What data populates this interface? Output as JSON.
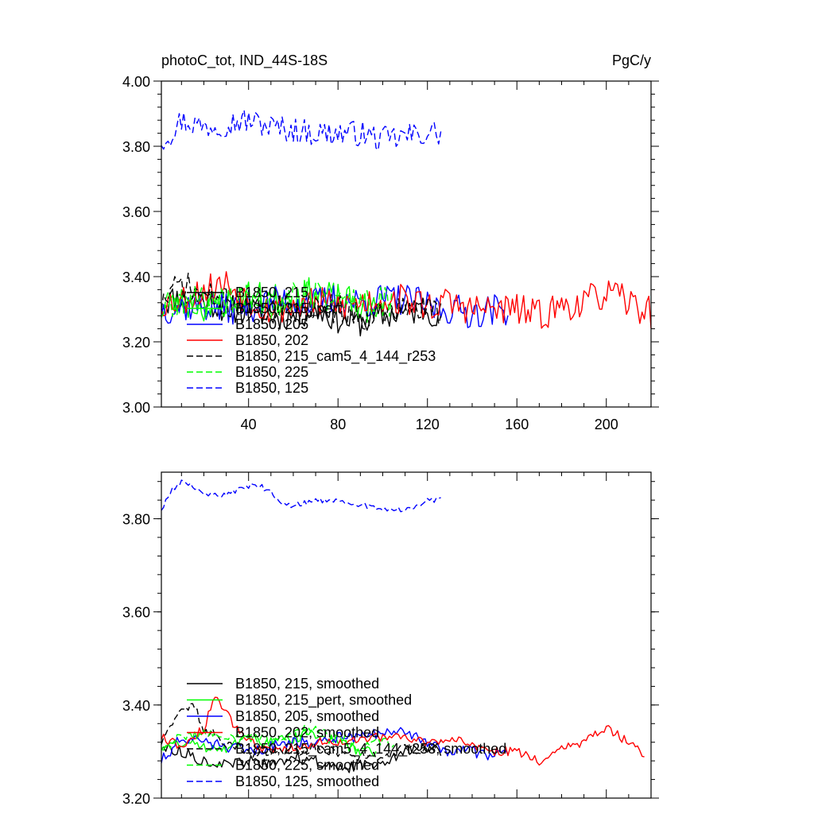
{
  "chart_data": [
    {
      "type": "line",
      "title": "photoC_tot, IND_44S-18S",
      "units": "PgC/y",
      "xlabel": "",
      "ylabel": "",
      "xlim": [
        1,
        220
      ],
      "ylim": [
        3.0,
        4.0
      ],
      "xticks": [
        40,
        80,
        120,
        160,
        200
      ],
      "xtick_labels": [
        "40",
        "80",
        "120",
        "160",
        "200"
      ],
      "yticks": [
        3.0,
        3.2,
        3.4,
        3.6,
        3.8,
        4.0
      ],
      "ytick_labels": [
        "3.00",
        "3.20",
        "3.40",
        "3.60",
        "3.80",
        "4.00"
      ],
      "legend_position": "lower-left",
      "series": [
        {
          "name": "B1850, 215",
          "color": "#000000",
          "dash": "solid",
          "knots": [
            [
              1,
              3.32
            ],
            [
              10,
              3.34
            ],
            [
              20,
              3.33
            ],
            [
              30,
              3.3
            ],
            [
              40,
              3.3
            ],
            [
              50,
              3.28
            ],
            [
              60,
              3.28
            ],
            [
              70,
              3.3
            ],
            [
              80,
              3.27
            ],
            [
              90,
              3.26
            ],
            [
              100,
              3.28
            ],
            [
              110,
              3.29
            ],
            [
              120,
              3.3
            ],
            [
              126,
              3.28
            ]
          ],
          "x_range": [
            1,
            126
          ],
          "noise": 0.045,
          "seed": 11
        },
        {
          "name": "B1850, 215_pert",
          "color": "#00ff00",
          "dash": "solid",
          "knots": [
            [
              1,
              3.3
            ],
            [
              10,
              3.32
            ],
            [
              20,
              3.31
            ],
            [
              30,
              3.32
            ],
            [
              40,
              3.34
            ],
            [
              50,
              3.33
            ],
            [
              60,
              3.34
            ],
            [
              70,
              3.35
            ],
            [
              80,
              3.33
            ],
            [
              90,
              3.31
            ],
            [
              97,
              3.3
            ]
          ],
          "x_range": [
            1,
            97
          ],
          "noise": 0.05,
          "seed": 23
        },
        {
          "name": "B1850, 205",
          "color": "#0000ff",
          "dash": "solid",
          "knots": [
            [
              1,
              3.3
            ],
            [
              10,
              3.31
            ],
            [
              20,
              3.31
            ],
            [
              30,
              3.3
            ],
            [
              40,
              3.31
            ],
            [
              50,
              3.32
            ],
            [
              60,
              3.33
            ],
            [
              70,
              3.32
            ],
            [
              80,
              3.33
            ],
            [
              90,
              3.32
            ],
            [
              100,
              3.33
            ],
            [
              110,
              3.33
            ],
            [
              120,
              3.31
            ],
            [
              130,
              3.3
            ],
            [
              140,
              3.29
            ],
            [
              150,
              3.3
            ],
            [
              156,
              3.3
            ]
          ],
          "x_range": [
            1,
            156
          ],
          "noise": 0.05,
          "seed": 37
        },
        {
          "name": "B1850, 202",
          "color": "#ff0000",
          "dash": "solid",
          "knots": [
            [
              1,
              3.32
            ],
            [
              10,
              3.33
            ],
            [
              20,
              3.36
            ],
            [
              30,
              3.38
            ],
            [
              40,
              3.33
            ],
            [
              50,
              3.3
            ],
            [
              60,
              3.31
            ],
            [
              70,
              3.32
            ],
            [
              80,
              3.31
            ],
            [
              90,
              3.32
            ],
            [
              100,
              3.33
            ],
            [
              110,
              3.33
            ],
            [
              120,
              3.31
            ],
            [
              130,
              3.32
            ],
            [
              140,
              3.3
            ],
            [
              150,
              3.3
            ],
            [
              160,
              3.3
            ],
            [
              170,
              3.28
            ],
            [
              180,
              3.31
            ],
            [
              190,
              3.32
            ],
            [
              200,
              3.35
            ],
            [
              210,
              3.32
            ],
            [
              220,
              3.29
            ]
          ],
          "x_range": [
            1,
            220
          ],
          "noise": 0.05,
          "seed": 53
        },
        {
          "name": "B1850, 215_cam5_4_144_r253",
          "color": "#000000",
          "dash": "dashed",
          "knots": [
            [
              1,
              3.32
            ],
            [
              10,
              3.38
            ],
            [
              20,
              3.34
            ],
            [
              30,
              3.32
            ],
            [
              40,
              3.31
            ],
            [
              50,
              3.3
            ],
            [
              60,
              3.3
            ],
            [
              70,
              3.31
            ],
            [
              80,
              3.3
            ],
            [
              90,
              3.28
            ],
            [
              100,
              3.29
            ],
            [
              110,
              3.3
            ],
            [
              120,
              3.3
            ],
            [
              126,
              3.3
            ]
          ],
          "x_range": [
            1,
            126
          ],
          "noise": 0.045,
          "seed": 71
        },
        {
          "name": "B1850, 225",
          "color": "#00ff00",
          "dash": "dashed",
          "knots": [
            [
              1,
              3.3
            ],
            [
              10,
              3.32
            ],
            [
              20,
              3.32
            ],
            [
              30,
              3.33
            ],
            [
              40,
              3.33
            ],
            [
              50,
              3.32
            ],
            [
              60,
              3.34
            ],
            [
              70,
              3.35
            ],
            [
              80,
              3.33
            ],
            [
              90,
              3.32
            ],
            [
              100,
              3.32
            ],
            [
              105,
              3.31
            ]
          ],
          "x_range": [
            1,
            105
          ],
          "noise": 0.05,
          "seed": 89
        },
        {
          "name": "B1850, 125",
          "color": "#0000ff",
          "dash": "dashed",
          "knots": [
            [
              1,
              3.82
            ],
            [
              5,
              3.84
            ],
            [
              10,
              3.88
            ],
            [
              20,
              3.86
            ],
            [
              30,
              3.87
            ],
            [
              40,
              3.88
            ],
            [
              50,
              3.86
            ],
            [
              60,
              3.85
            ],
            [
              70,
              3.84
            ],
            [
              80,
              3.84
            ],
            [
              90,
              3.84
            ],
            [
              100,
              3.82
            ],
            [
              110,
              3.83
            ],
            [
              120,
              3.84
            ],
            [
              126,
              3.84
            ]
          ],
          "x_range": [
            1,
            126
          ],
          "noise": 0.04,
          "seed": 97
        }
      ],
      "legend": [
        "B1850, 215",
        "B1850, 215_pert",
        "B1850, 205",
        "B1850, 202",
        "B1850, 215_cam5_4_144_r253",
        "B1850, 225",
        "B1850, 125"
      ]
    },
    {
      "type": "line",
      "title": "",
      "xlim": [
        1,
        220
      ],
      "ylim": [
        3.2,
        3.9
      ],
      "xticks": [
        40,
        80,
        120,
        160,
        200
      ],
      "yticks": [
        3.2,
        3.4,
        3.6,
        3.8
      ],
      "ytick_labels": [
        "3.20",
        "3.40",
        "3.60",
        "3.80"
      ],
      "legend_position": "lower-left",
      "series": [
        {
          "name": "B1850, 215, smoothed",
          "color": "#000000",
          "dash": "solid",
          "knots": [
            [
              1,
              3.31
            ],
            [
              10,
              3.3
            ],
            [
              20,
              3.28
            ],
            [
              30,
              3.27
            ],
            [
              40,
              3.28
            ],
            [
              50,
              3.27
            ],
            [
              60,
              3.29
            ],
            [
              70,
              3.28
            ],
            [
              80,
              3.26
            ],
            [
              90,
              3.27
            ],
            [
              100,
              3.28
            ],
            [
              110,
              3.3
            ],
            [
              120,
              3.31
            ],
            [
              126,
              3.3
            ]
          ],
          "x_range": [
            1,
            126
          ],
          "noise": 0.012,
          "seed": 113
        },
        {
          "name": "B1850, 215_pert, smoothed",
          "color": "#00ff00",
          "dash": "solid",
          "knots": [
            [
              1,
              3.31
            ],
            [
              10,
              3.32
            ],
            [
              20,
              3.31
            ],
            [
              30,
              3.31
            ],
            [
              40,
              3.33
            ],
            [
              50,
              3.32
            ],
            [
              60,
              3.33
            ],
            [
              70,
              3.34
            ],
            [
              80,
              3.32
            ],
            [
              90,
              3.3
            ],
            [
              97,
              3.3
            ]
          ],
          "x_range": [
            1,
            97
          ],
          "noise": 0.012,
          "seed": 131
        },
        {
          "name": "B1850, 205, smoothed",
          "color": "#0000ff",
          "dash": "solid",
          "knots": [
            [
              1,
              3.28
            ],
            [
              10,
              3.33
            ],
            [
              20,
              3.32
            ],
            [
              30,
              3.31
            ],
            [
              40,
              3.3
            ],
            [
              50,
              3.31
            ],
            [
              60,
              3.32
            ],
            [
              70,
              3.32
            ],
            [
              80,
              3.33
            ],
            [
              90,
              3.33
            ],
            [
              100,
              3.34
            ],
            [
              110,
              3.34
            ],
            [
              120,
              3.32
            ],
            [
              130,
              3.3
            ],
            [
              140,
              3.3
            ],
            [
              150,
              3.29
            ],
            [
              156,
              3.3
            ]
          ],
          "x_range": [
            1,
            156
          ],
          "noise": 0.012,
          "seed": 151
        },
        {
          "name": "B1850, 202, smoothed",
          "color": "#ff0000",
          "dash": "solid",
          "knots": [
            [
              1,
              3.33
            ],
            [
              10,
              3.31
            ],
            [
              20,
              3.35
            ],
            [
              25,
              3.42
            ],
            [
              30,
              3.38
            ],
            [
              40,
              3.32
            ],
            [
              50,
              3.3
            ],
            [
              60,
              3.31
            ],
            [
              70,
              3.32
            ],
            [
              80,
              3.32
            ],
            [
              90,
              3.33
            ],
            [
              100,
              3.33
            ],
            [
              110,
              3.33
            ],
            [
              120,
              3.32
            ],
            [
              130,
              3.33
            ],
            [
              140,
              3.31
            ],
            [
              150,
              3.3
            ],
            [
              160,
              3.3
            ],
            [
              170,
              3.28
            ],
            [
              180,
              3.31
            ],
            [
              190,
              3.32
            ],
            [
              200,
              3.35
            ],
            [
              210,
              3.32
            ],
            [
              217,
              3.29
            ]
          ],
          "x_range": [
            1,
            217
          ],
          "noise": 0.01,
          "seed": 173
        },
        {
          "name": "B1850, 215_cam5_4_144_r253, smoothed",
          "color": "#000000",
          "dash": "dashed",
          "knots": [
            [
              1,
              3.32
            ],
            [
              10,
              3.39
            ],
            [
              15,
              3.4
            ],
            [
              20,
              3.35
            ],
            [
              30,
              3.32
            ],
            [
              40,
              3.3
            ],
            [
              50,
              3.3
            ],
            [
              60,
              3.3
            ],
            [
              70,
              3.31
            ],
            [
              80,
              3.3
            ],
            [
              90,
              3.29
            ],
            [
              100,
              3.29
            ],
            [
              110,
              3.31
            ],
            [
              120,
              3.3
            ],
            [
              126,
              3.31
            ]
          ],
          "x_range": [
            1,
            126
          ],
          "noise": 0.012,
          "seed": 191
        },
        {
          "name": "B1850, 225, smoothed",
          "color": "#00ff00",
          "dash": "dashed",
          "knots": [
            [
              1,
              3.31
            ],
            [
              10,
              3.33
            ],
            [
              20,
              3.34
            ],
            [
              30,
              3.33
            ],
            [
              40,
              3.33
            ],
            [
              50,
              3.32
            ],
            [
              60,
              3.34
            ],
            [
              70,
              3.35
            ],
            [
              80,
              3.33
            ],
            [
              90,
              3.31
            ],
            [
              100,
              3.32
            ],
            [
              105,
              3.31
            ]
          ],
          "x_range": [
            1,
            105
          ],
          "noise": 0.012,
          "seed": 211
        },
        {
          "name": "B1850, 125, smoothed",
          "color": "#0000ff",
          "dash": "dashed",
          "knots": [
            [
              1,
              3.82
            ],
            [
              5,
              3.86
            ],
            [
              10,
              3.88
            ],
            [
              15,
              3.87
            ],
            [
              20,
              3.85
            ],
            [
              30,
              3.85
            ],
            [
              40,
              3.87
            ],
            [
              45,
              3.87
            ],
            [
              50,
              3.86
            ],
            [
              55,
              3.83
            ],
            [
              60,
              3.83
            ],
            [
              70,
              3.84
            ],
            [
              80,
              3.84
            ],
            [
              90,
              3.83
            ],
            [
              100,
              3.82
            ],
            [
              110,
              3.82
            ],
            [
              120,
              3.84
            ],
            [
              126,
              3.84
            ]
          ],
          "x_range": [
            1,
            126
          ],
          "noise": 0.006,
          "seed": 229
        }
      ],
      "legend": [
        "B1850, 215, smoothed",
        "B1850, 215_pert, smoothed",
        "B1850, 205, smoothed",
        "B1850, 202, smoothed",
        "B1850, 215_cam5_4_144_r253, smoothed",
        "B1850, 225, smoothed",
        "B1850, 125, smoothed"
      ]
    }
  ]
}
